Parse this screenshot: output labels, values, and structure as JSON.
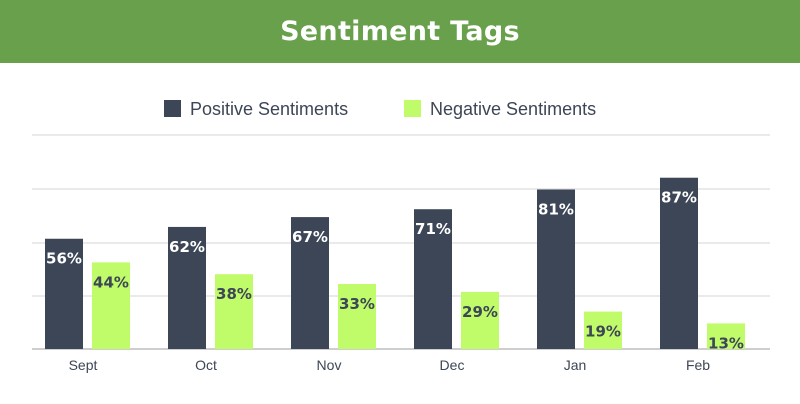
{
  "header": {
    "title": "Sentiment Tags"
  },
  "colors": {
    "header_bg": "#68a04c",
    "positive": "#3d4656",
    "negative": "#c0fb6a",
    "grid": "#d6d6d6"
  },
  "chart_data": {
    "type": "bar",
    "title": "Sentiment Tags",
    "categories": [
      "Sept",
      "Oct",
      "Nov",
      "Dec",
      "Jan",
      "Feb"
    ],
    "series": [
      {
        "name": "Positive Sentiments",
        "values": [
          56,
          62,
          67,
          71,
          81,
          87
        ],
        "labels": [
          "56%",
          "62%",
          "67%",
          "71%",
          "81%",
          "87%"
        ]
      },
      {
        "name": "Negative Sentiments",
        "values": [
          44,
          38,
          33,
          29,
          19,
          13
        ],
        "labels": [
          "44%",
          "38%",
          "33%",
          "29%",
          "19%",
          "13%"
        ]
      }
    ],
    "ylim": [
      0,
      100
    ],
    "grid": true,
    "legend_position": "top"
  }
}
